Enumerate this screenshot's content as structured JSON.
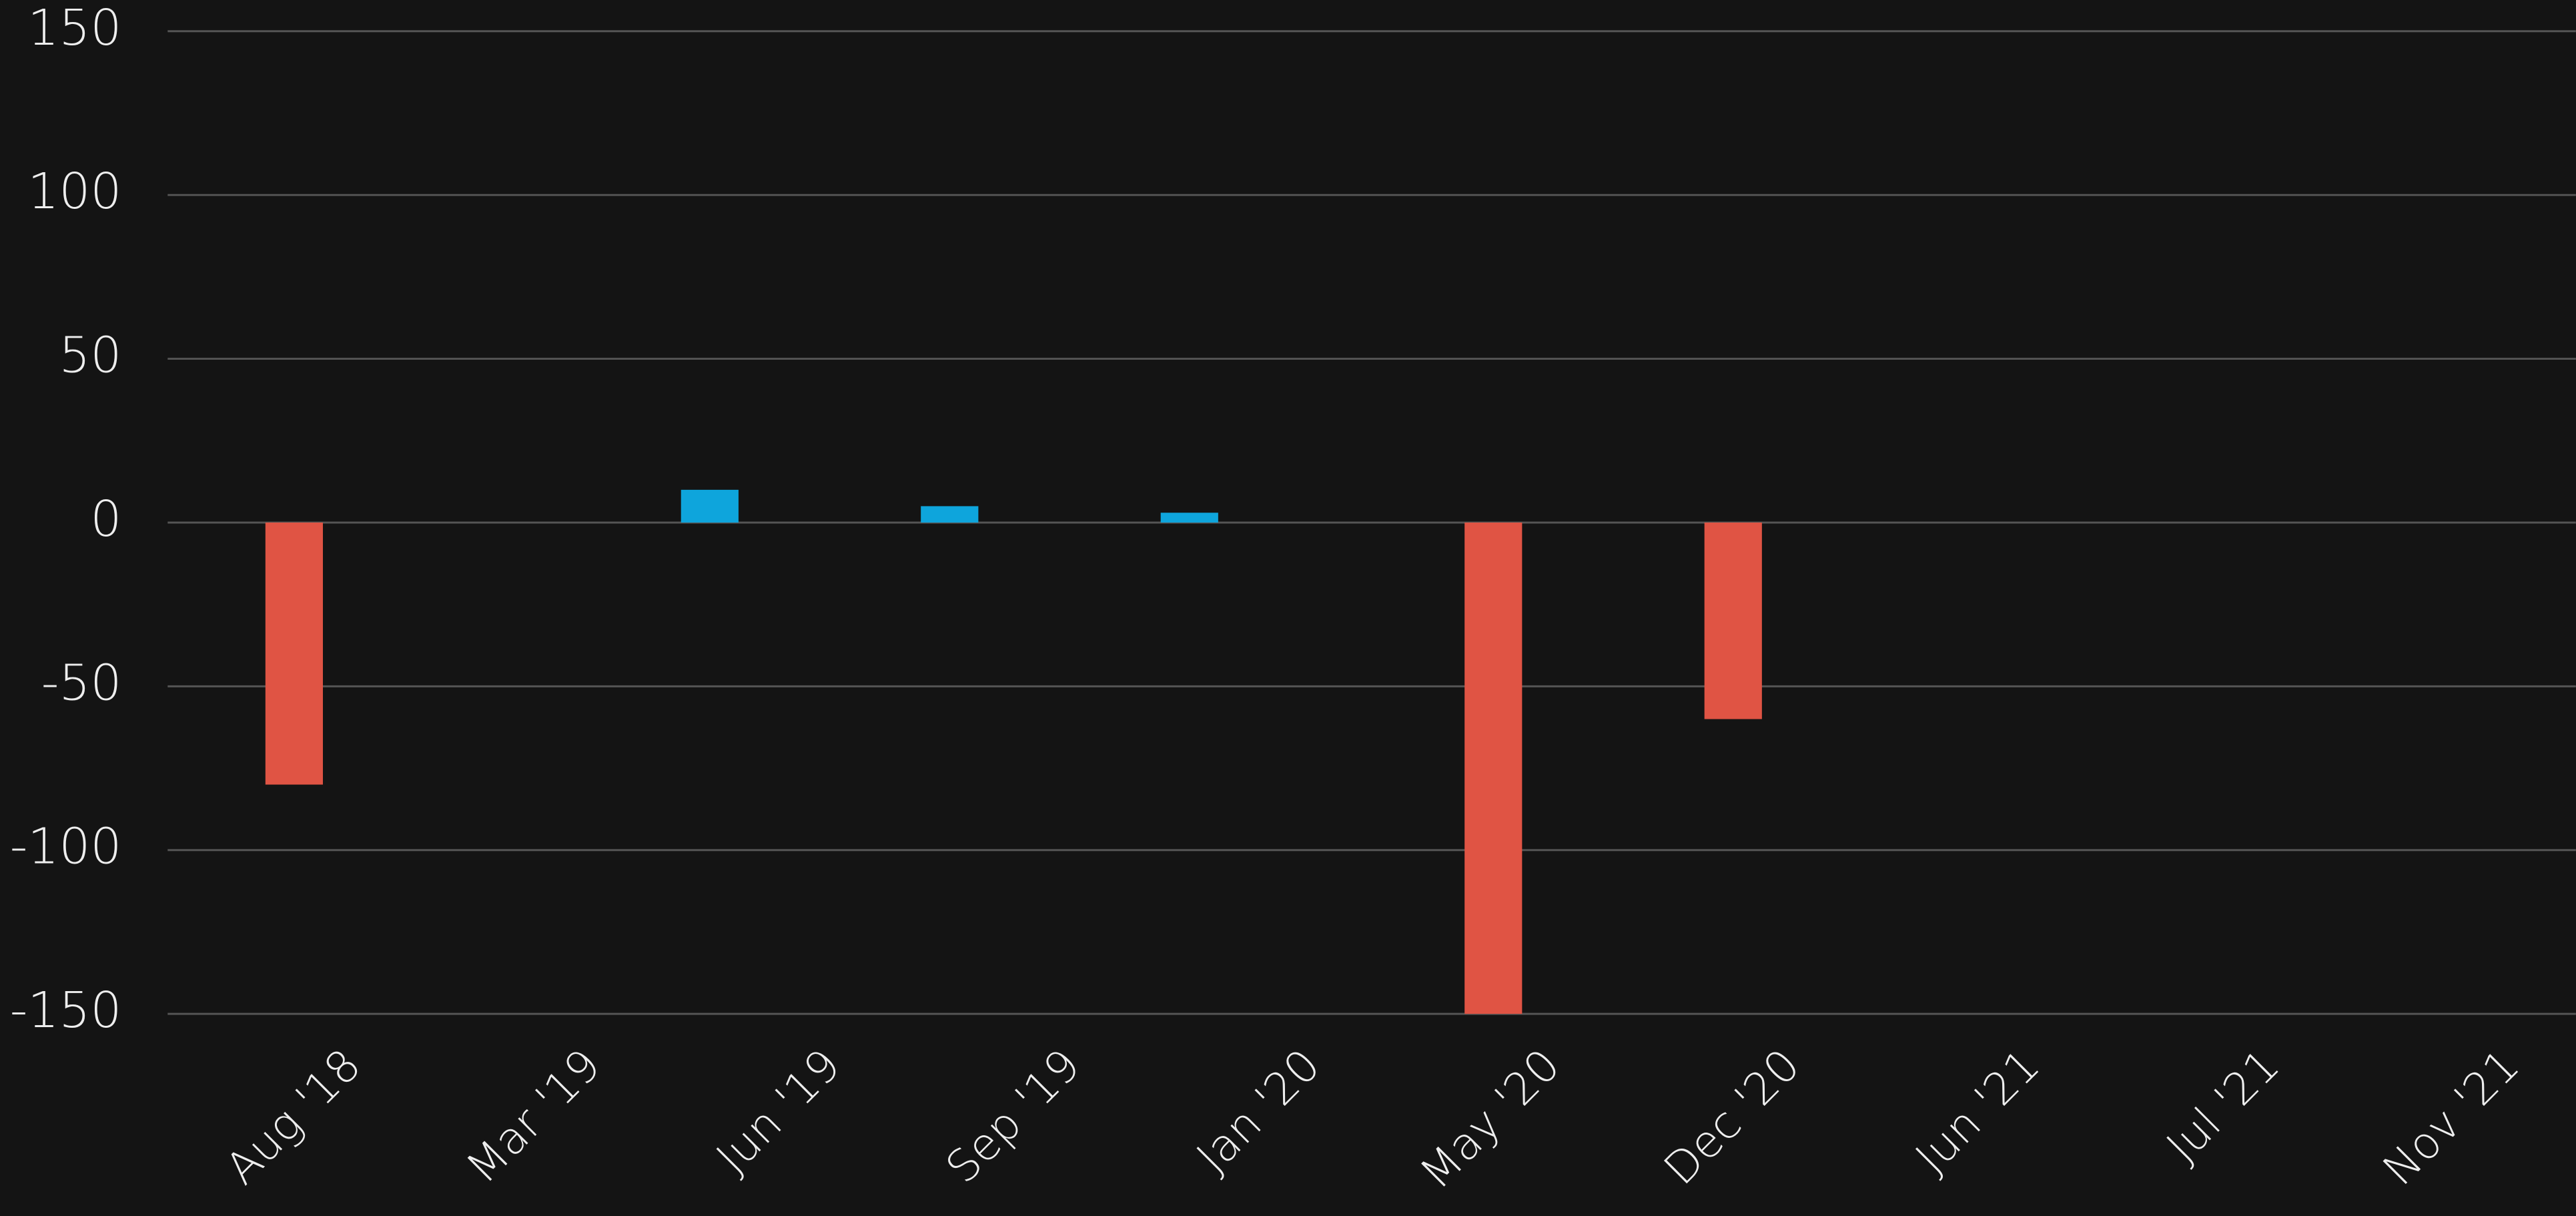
{
  "chart_data": {
    "type": "bar",
    "categories": [
      "Aug '18",
      "Mar '19",
      "Jun '19",
      "Sep '19",
      "Jan '20",
      "May '20",
      "Dec '20",
      "Jun '21",
      "Jul '21",
      "Nov '21"
    ],
    "series": [
      {
        "color": "#0ea5dc",
        "values": [
          null,
          null,
          10,
          5,
          3,
          null,
          null,
          null,
          null,
          null
        ]
      },
      {
        "color": "#e05444",
        "values": [
          -80,
          null,
          null,
          null,
          null,
          -150,
          -60,
          null,
          null,
          null
        ]
      }
    ],
    "ylim": [
      -150,
      150
    ],
    "yticks": [
      -150,
      -100,
      -50,
      0,
      50,
      100,
      150
    ],
    "grid": true
  }
}
